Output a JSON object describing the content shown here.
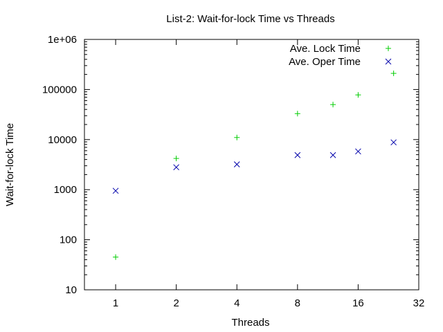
{
  "chart_data": {
    "type": "scatter",
    "title": "List-2: Wait-for-lock Time vs Threads",
    "xlabel": "Threads",
    "ylabel": "Wait-for-lock Time",
    "x_scale": "log2",
    "y_scale": "log10",
    "xlim": [
      0.7,
      32
    ],
    "ylim": [
      10,
      1000000
    ],
    "x_ticks": [
      "1",
      "2",
      "4",
      "8",
      "16",
      "32"
    ],
    "y_ticks": [
      "10",
      "100",
      "1000",
      "10000",
      "100000",
      "1e+06"
    ],
    "x_tick_values": [
      1,
      2,
      4,
      8,
      16,
      32
    ],
    "y_tick_values": [
      10,
      100,
      1000,
      10000,
      100000,
      1000000
    ],
    "grid": false,
    "legend_position": "top-right",
    "colors": {
      "lock": "#00cc00",
      "oper": "#0000aa"
    },
    "series": [
      {
        "name": "Ave. Lock Time",
        "marker": "plus",
        "color": "#00cc00",
        "x": [
          1,
          2,
          4,
          8,
          12,
          16,
          24
        ],
        "y": [
          45,
          4200,
          11000,
          33000,
          50000,
          78000,
          210000
        ]
      },
      {
        "name": "Ave. Oper Time",
        "marker": "cross",
        "color": "#0000aa",
        "x": [
          1,
          2,
          4,
          8,
          12,
          16,
          24
        ],
        "y": [
          950,
          2800,
          3200,
          4900,
          4900,
          5800,
          8800
        ]
      }
    ]
  }
}
